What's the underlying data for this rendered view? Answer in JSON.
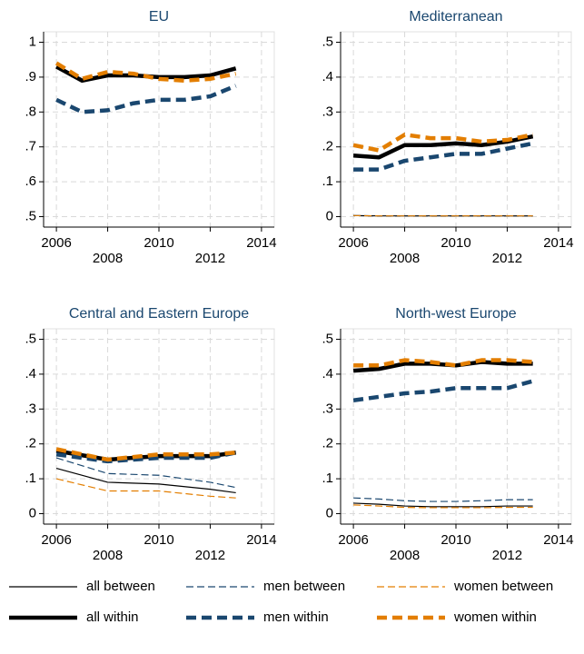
{
  "chart_data": [
    {
      "type": "line",
      "title": "EU",
      "x": [
        2006,
        2007,
        2008,
        2009,
        2010,
        2011,
        2012,
        2013
      ],
      "xlim": [
        2005.5,
        2014.5
      ],
      "xticks": [
        2006,
        2008,
        2010,
        2012,
        2014
      ],
      "ylim": [
        0.47,
        1.03
      ],
      "yticks": [
        {
          "value": 0.5,
          "label": ".5"
        },
        {
          "value": 0.6,
          "label": ".6"
        },
        {
          "value": 0.7,
          "label": ".7"
        },
        {
          "value": 0.8,
          "label": ".8"
        },
        {
          "value": 0.9,
          "label": ".9"
        },
        1
      ],
      "grid": true,
      "series": [
        {
          "name": "all within",
          "color": "#000000",
          "weight": "thick",
          "dash": false,
          "values": [
            0.93,
            0.89,
            0.905,
            0.905,
            0.9,
            0.9,
            0.905,
            0.925
          ]
        },
        {
          "name": "men within",
          "color": "#1a476f",
          "weight": "thick",
          "dash": true,
          "values": [
            0.835,
            0.8,
            0.805,
            0.825,
            0.835,
            0.835,
            0.845,
            0.875
          ]
        },
        {
          "name": "women within",
          "color": "#e37e00",
          "weight": "thick",
          "dash": true,
          "values": [
            0.94,
            0.895,
            0.915,
            0.91,
            0.895,
            0.89,
            0.895,
            0.91
          ]
        }
      ]
    },
    {
      "type": "line",
      "title": "Mediterranean",
      "x": [
        2006,
        2007,
        2008,
        2009,
        2010,
        2011,
        2012,
        2013
      ],
      "xlim": [
        2005.5,
        2014.5
      ],
      "xticks": [
        2006,
        2008,
        2010,
        2012,
        2014
      ],
      "ylim": [
        -0.03,
        0.53
      ],
      "yticks": [
        0,
        {
          "value": 0.1,
          "label": ".1"
        },
        {
          "value": 0.2,
          "label": ".2"
        },
        {
          "value": 0.3,
          "label": ".3"
        },
        {
          "value": 0.4,
          "label": ".4"
        },
        {
          "value": 0.5,
          "label": ".5"
        }
      ],
      "grid": true,
      "series": [
        {
          "name": "all between",
          "color": "#000000",
          "weight": "thin",
          "dash": false,
          "values": [
            0.003,
            0.002,
            0.002,
            0.002,
            0.002,
            0.002,
            0.002,
            0.002
          ]
        },
        {
          "name": "men between",
          "color": "#1a476f",
          "weight": "thin",
          "dash": true,
          "values": [
            0.003,
            0.002,
            0.002,
            0.002,
            0.002,
            0.002,
            0.002,
            0.002
          ]
        },
        {
          "name": "women between",
          "color": "#e37e00",
          "weight": "thin",
          "dash": true,
          "values": [
            0.003,
            0.002,
            0.002,
            0.002,
            0.002,
            0.002,
            0.002,
            0.002
          ]
        },
        {
          "name": "all within",
          "color": "#000000",
          "weight": "thick",
          "dash": false,
          "values": [
            0.175,
            0.17,
            0.205,
            0.205,
            0.21,
            0.205,
            0.215,
            0.23
          ]
        },
        {
          "name": "men within",
          "color": "#1a476f",
          "weight": "thick",
          "dash": true,
          "values": [
            0.135,
            0.135,
            0.16,
            0.17,
            0.18,
            0.18,
            0.195,
            0.21
          ]
        },
        {
          "name": "women within",
          "color": "#e37e00",
          "weight": "thick",
          "dash": true,
          "values": [
            0.205,
            0.19,
            0.235,
            0.225,
            0.225,
            0.215,
            0.22,
            0.235
          ]
        }
      ]
    },
    {
      "type": "line",
      "title": "Central and Eastern Europe",
      "x": [
        2006,
        2008,
        2010,
        2012,
        2013
      ],
      "xlim": [
        2005.5,
        2014.5
      ],
      "xticks": [
        2006,
        2008,
        2010,
        2012,
        2014
      ],
      "ylim": [
        -0.03,
        0.53
      ],
      "yticks": [
        0,
        {
          "value": 0.1,
          "label": ".1"
        },
        {
          "value": 0.2,
          "label": ".2"
        },
        {
          "value": 0.3,
          "label": ".3"
        },
        {
          "value": 0.4,
          "label": ".4"
        },
        {
          "value": 0.5,
          "label": ".5"
        }
      ],
      "grid": true,
      "series": [
        {
          "name": "all between",
          "color": "#000000",
          "weight": "thin",
          "dash": false,
          "values": [
            0.13,
            0.09,
            0.085,
            0.07,
            0.06
          ]
        },
        {
          "name": "men between",
          "color": "#1a476f",
          "weight": "thin",
          "dash": true,
          "values": [
            0.16,
            0.115,
            0.11,
            0.09,
            0.075
          ]
        },
        {
          "name": "women between",
          "color": "#e37e00",
          "weight": "thin",
          "dash": true,
          "values": [
            0.1,
            0.065,
            0.065,
            0.05,
            0.045
          ]
        },
        {
          "name": "all within",
          "color": "#000000",
          "weight": "thick",
          "dash": false,
          "values": [
            0.18,
            0.155,
            0.165,
            0.165,
            0.175
          ]
        },
        {
          "name": "men within",
          "color": "#1a476f",
          "weight": "thick",
          "dash": true,
          "values": [
            0.17,
            0.15,
            0.16,
            0.16,
            0.175
          ]
        },
        {
          "name": "women within",
          "color": "#e37e00",
          "weight": "thick",
          "dash": true,
          "values": [
            0.185,
            0.155,
            0.17,
            0.17,
            0.175
          ]
        }
      ]
    },
    {
      "type": "line",
      "title": "North-west Europe",
      "x": [
        2006,
        2007,
        2008,
        2009,
        2010,
        2011,
        2012,
        2013
      ],
      "xlim": [
        2005.5,
        2014.5
      ],
      "xticks": [
        2006,
        2008,
        2010,
        2012,
        2014
      ],
      "ylim": [
        -0.03,
        0.53
      ],
      "yticks": [
        0,
        {
          "value": 0.1,
          "label": ".1"
        },
        {
          "value": 0.2,
          "label": ".2"
        },
        {
          "value": 0.3,
          "label": ".3"
        },
        {
          "value": 0.4,
          "label": ".4"
        },
        {
          "value": 0.5,
          "label": ".5"
        }
      ],
      "grid": true,
      "series": [
        {
          "name": "all between",
          "color": "#000000",
          "weight": "thin",
          "dash": false,
          "values": [
            0.03,
            0.027,
            0.022,
            0.02,
            0.02,
            0.02,
            0.022,
            0.022
          ]
        },
        {
          "name": "men between",
          "color": "#1a476f",
          "weight": "thin",
          "dash": true,
          "values": [
            0.045,
            0.042,
            0.037,
            0.035,
            0.035,
            0.037,
            0.04,
            0.04
          ]
        },
        {
          "name": "women between",
          "color": "#e37e00",
          "weight": "thin",
          "dash": true,
          "values": [
            0.025,
            0.022,
            0.018,
            0.017,
            0.017,
            0.017,
            0.018,
            0.018
          ]
        },
        {
          "name": "all within",
          "color": "#000000",
          "weight": "thick",
          "dash": false,
          "values": [
            0.41,
            0.415,
            0.43,
            0.43,
            0.425,
            0.435,
            0.43,
            0.43
          ]
        },
        {
          "name": "men within",
          "color": "#1a476f",
          "weight": "thick",
          "dash": true,
          "values": [
            0.325,
            0.335,
            0.345,
            0.35,
            0.36,
            0.36,
            0.36,
            0.38
          ]
        },
        {
          "name": "women within",
          "color": "#e37e00",
          "weight": "thick",
          "dash": true,
          "values": [
            0.425,
            0.425,
            0.44,
            0.435,
            0.425,
            0.44,
            0.44,
            0.435
          ]
        }
      ]
    }
  ],
  "legend": "bottom"
}
